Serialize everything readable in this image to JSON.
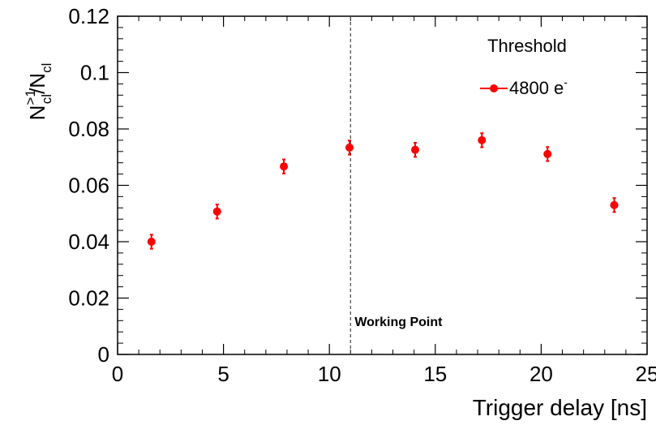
{
  "chart_data": {
    "type": "scatter",
    "xlabel": "Trigger delay [ns]",
    "ylabel": {
      "main": "N",
      "sup": ">1",
      "sub": "cl",
      "slash": "/",
      "main2": "N",
      "sub2": "cl"
    },
    "xlim": [
      0,
      25
    ],
    "ylim": [
      0,
      0.12
    ],
    "x_ticks": [
      0,
      5,
      10,
      15,
      20,
      25
    ],
    "y_ticks": [
      0,
      0.02,
      0.04,
      0.06,
      0.08,
      0.1,
      0.12
    ],
    "x_tick_labels": [
      "0",
      "5",
      "10",
      "15",
      "20",
      "25"
    ],
    "y_tick_labels": [
      "0",
      "0.02",
      "0.04",
      "0.06",
      "0.08",
      "0.1",
      "0.12"
    ],
    "grid": false,
    "legend": {
      "title": "Threshold",
      "placement": "top-right",
      "entry_label": "4800 e",
      "entry_sup": "-"
    },
    "series": [
      {
        "name": "4800 e-",
        "color": "#ff0000",
        "x": [
          1.6,
          4.7,
          7.85,
          10.95,
          14.05,
          17.2,
          20.3,
          23.45
        ],
        "y": [
          0.04,
          0.0507,
          0.0667,
          0.0734,
          0.0726,
          0.076,
          0.0711,
          0.053
        ],
        "yerr": [
          0.0025,
          0.0025,
          0.0025,
          0.0025,
          0.0025,
          0.0025,
          0.0025,
          0.0025
        ]
      }
    ],
    "vline": {
      "x": 11,
      "style": "dashed",
      "color": "#444444",
      "label": "Working Point"
    }
  }
}
